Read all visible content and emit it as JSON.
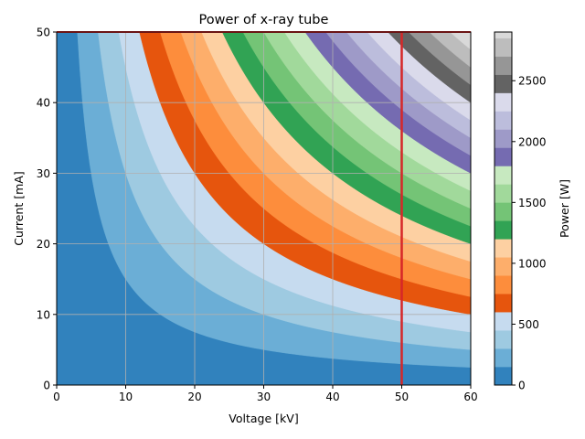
{
  "chart_data": {
    "type": "heatmap",
    "subtype": "filled-contour",
    "title": "Power of x-ray tube",
    "xlabel": "Voltage [kV]",
    "ylabel": "Current [mA]",
    "xlim": [
      0,
      60
    ],
    "ylim": [
      0,
      50
    ],
    "xticks": [
      0,
      10,
      20,
      30,
      40,
      50,
      60
    ],
    "yticks": [
      0,
      10,
      20,
      30,
      40,
      50
    ],
    "grid": true,
    "function": "power = voltage * current",
    "levels": [
      0,
      150,
      300,
      450,
      600,
      750,
      900,
      1050,
      1200,
      1350,
      1500,
      1650,
      1800,
      1950,
      2100,
      2250,
      2400,
      2550,
      2700,
      2850,
      3000
    ],
    "colors": [
      "#3182bd",
      "#6baed6",
      "#9ecae1",
      "#c6dbef",
      "#e6550d",
      "#fd8d3c",
      "#fdae6b",
      "#fdd0a2",
      "#31a354",
      "#74c476",
      "#a1d99b",
      "#c7e9c0",
      "#756bb1",
      "#9e9ac8",
      "#bcbddc",
      "#dadaeb",
      "#636363",
      "#969696",
      "#bdbdbd",
      "#d9d9d9"
    ],
    "annotations": [
      {
        "type": "hline",
        "y": 50,
        "color": "#d62728"
      },
      {
        "type": "vline",
        "x": 50,
        "color": "#d62728"
      }
    ],
    "colorbar": {
      "label": "Power [W]",
      "range": [
        0,
        2900
      ],
      "ticks": [
        0,
        500,
        1000,
        1500,
        2000,
        2500
      ]
    }
  }
}
